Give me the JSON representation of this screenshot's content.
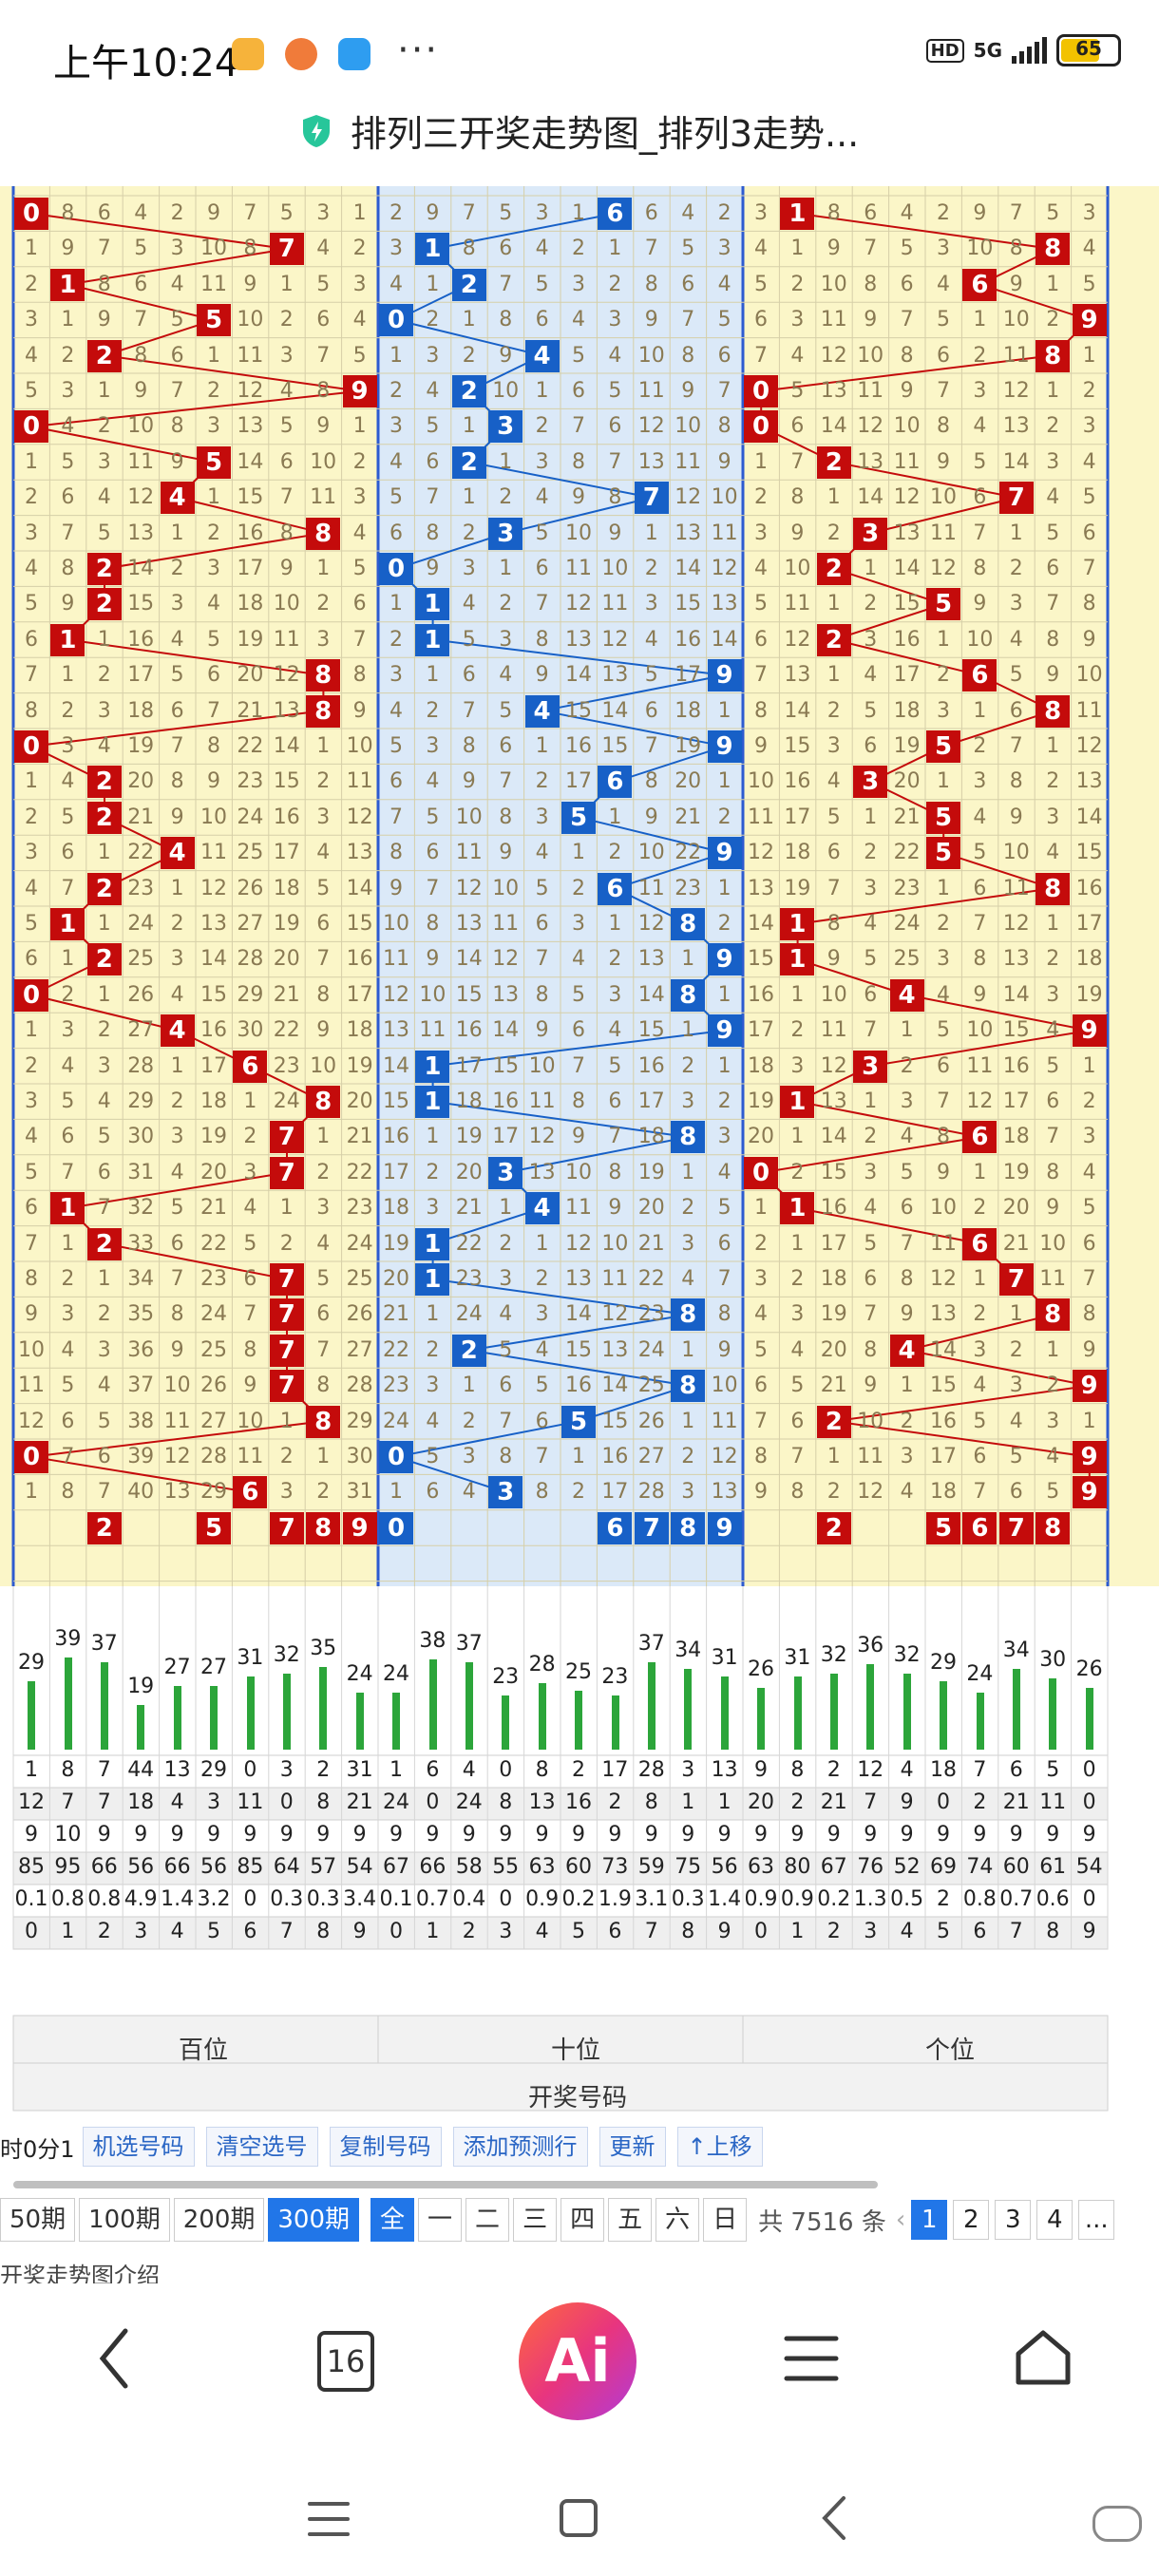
{
  "status_bar": {
    "time": "上午10:24",
    "dots": "···",
    "hd": "HD",
    "network": "5G",
    "battery": "65"
  },
  "page_title": "排列三开奖走势图_排列3走势...",
  "colors": {
    "hit_red": "#c40b0b",
    "hit_blue": "#1760c7",
    "cell_bg": "#fbf6c8",
    "tens_bg": "#dbe9f8",
    "green_bar": "#2ca53a",
    "accent": "#2176e8"
  },
  "chart_data": {
    "type": "table",
    "visible_rows": 37,
    "hundreds_draws": [
      0,
      7,
      1,
      5,
      2,
      9,
      0,
      5,
      4,
      8,
      2,
      2,
      1,
      8,
      8,
      0,
      2,
      2,
      4,
      2,
      1,
      2,
      0,
      4,
      6,
      8,
      7,
      7,
      1,
      2,
      7,
      7,
      7,
      7,
      8,
      0,
      6
    ],
    "tens_draws": [
      6,
      1,
      2,
      0,
      4,
      2,
      3,
      2,
      7,
      3,
      0,
      1,
      1,
      9,
      4,
      9,
      6,
      5,
      9,
      6,
      8,
      9,
      8,
      9,
      1,
      1,
      8,
      3,
      4,
      1,
      1,
      8,
      2,
      8,
      5,
      0,
      3
    ],
    "units_draws": [
      1,
      8,
      6,
      9,
      8,
      0,
      0,
      2,
      7,
      3,
      2,
      5,
      2,
      6,
      8,
      5,
      3,
      5,
      5,
      8,
      1,
      1,
      4,
      9,
      3,
      1,
      6,
      0,
      1,
      6,
      7,
      8,
      4,
      9,
      2,
      9,
      9
    ],
    "last_row_hundreds": [
      2,
      5,
      7,
      8,
      9
    ],
    "last_row_tens": [
      0,
      6,
      7,
      8,
      9
    ],
    "last_row_units": [
      2,
      5,
      6,
      7,
      8
    ]
  },
  "stats": {
    "appear_counts": [
      29,
      39,
      37,
      19,
      27,
      27,
      31,
      32,
      35,
      24,
      24,
      38,
      37,
      23,
      28,
      25,
      23,
      37,
      34,
      31,
      26,
      31,
      32,
      36,
      32,
      29,
      24,
      34,
      30,
      26
    ],
    "row_max_omission": [
      1,
      8,
      7,
      44,
      13,
      29,
      0,
      3,
      2,
      31,
      1,
      6,
      4,
      0,
      8,
      2,
      17,
      28,
      3,
      13,
      9,
      8,
      2,
      12,
      4,
      18,
      7,
      6,
      5,
      0
    ],
    "row_avg_omission": [
      12,
      7,
      7,
      18,
      4,
      3,
      11,
      0,
      8,
      21,
      24,
      0,
      24,
      8,
      13,
      16,
      2,
      8,
      1,
      1,
      20,
      2,
      21,
      7,
      9,
      0,
      2,
      21,
      11,
      0
    ],
    "row_max_streak": [
      9,
      10,
      9,
      9,
      9,
      9,
      9,
      9,
      9,
      9,
      9,
      9,
      9,
      9,
      9,
      9,
      9,
      9,
      9,
      9,
      9,
      9,
      9,
      9,
      9,
      9,
      9,
      9,
      9,
      9
    ],
    "row_rate": [
      85,
      95,
      66,
      56,
      66,
      56,
      85,
      64,
      57,
      54,
      67,
      66,
      58,
      55,
      63,
      60,
      73,
      59,
      75,
      56,
      63,
      80,
      67,
      76,
      52,
      69,
      74,
      60,
      61,
      54
    ],
    "row_misc": [
      "0.1",
      "0.8",
      "0.8",
      "4.9",
      "1.4",
      "3.2",
      "0",
      "0.3",
      "0.3",
      "3.4",
      "0.1",
      "0.7",
      "0.4",
      "0",
      "0.9",
      "0.2",
      "1.9",
      "3.1",
      "0.3",
      "1.4",
      "0.9",
      "0.9",
      "0.2",
      "1.3",
      "0.5",
      "2",
      "0.8",
      "0.7",
      "0.6",
      "0"
    ],
    "digit_labels": [
      "0",
      "1",
      "2",
      "3",
      "4",
      "5",
      "6",
      "7",
      "8",
      "9",
      "0",
      "1",
      "2",
      "3",
      "4",
      "5",
      "6",
      "7",
      "8",
      "9",
      "0",
      "1",
      "2",
      "3",
      "4",
      "5",
      "6",
      "7",
      "8",
      "9"
    ],
    "position_labels": [
      "百位",
      "十位",
      "个位"
    ],
    "footer_label": "开奖号码"
  },
  "buttons": {
    "partial": "时0分1",
    "pick": "机选号码",
    "clear": "清空选号",
    "copy": "复制号码",
    "add": "添加预测行",
    "update": "更新",
    "up": "↑上移"
  },
  "periods": {
    "options": [
      "50期",
      "100期",
      "200期",
      "300期"
    ],
    "selected": "300期",
    "days": [
      "全",
      "一",
      "二",
      "三",
      "四",
      "五",
      "六",
      "日"
    ],
    "total": "共 7516 条",
    "pages": [
      "1",
      "2",
      "3",
      "4",
      "..."
    ]
  },
  "intro_text": "开奖走势图介绍",
  "nav": {
    "tab_count": "16",
    "ai_label": "Ai"
  }
}
